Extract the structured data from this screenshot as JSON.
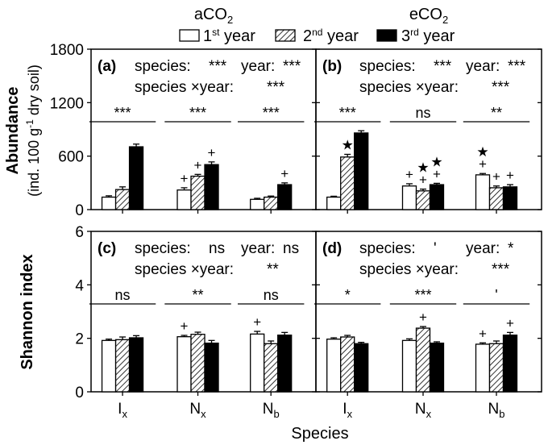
{
  "figure": {
    "header_left": {
      "base": "aCO",
      "sub": "2"
    },
    "header_right": {
      "base": "eCO",
      "sub": "2"
    },
    "xlabel": "Species",
    "ylabel_top": "Abundance",
    "ylabel_top_units": {
      "a": "(ind. 100 g",
      "sup": "-1",
      "b": " dry soil)"
    },
    "ylabel_bottom": "Shannon index",
    "legend": [
      {
        "base": "1",
        "sup": "st",
        "rest": " year"
      },
      {
        "base": "2",
        "sup": "nd",
        "rest": " year"
      },
      {
        "base": "3",
        "sup": "rd",
        "rest": " year"
      }
    ],
    "x_categories": [
      {
        "base": "I",
        "sub": "x"
      },
      {
        "base": "N",
        "sub": "x"
      },
      {
        "base": "N",
        "sub": "b"
      }
    ],
    "colors": {
      "year1": "#ffffff",
      "year2": "hatch",
      "year3": "#000000",
      "ink": "#000000"
    }
  },
  "chart_data": [
    {
      "type": "bar",
      "panel": "(a)",
      "condition": "aCO2",
      "categories": [
        "Ix",
        "Nx",
        "Nb"
      ],
      "series": [
        {
          "name": "1st year",
          "values": [
            140,
            220,
            115
          ],
          "errors": [
            15,
            25,
            12
          ]
        },
        {
          "name": "2nd year",
          "values": [
            225,
            375,
            140
          ],
          "errors": [
            30,
            20,
            12
          ]
        },
        {
          "name": "3rd year",
          "values": [
            705,
            505,
            280
          ],
          "errors": [
            30,
            30,
            20
          ]
        }
      ],
      "ylim": [
        0,
        1800
      ],
      "yticks": [
        "0",
        "600",
        "1200",
        "1800"
      ],
      "stats": [
        "species:",
        "***",
        "year:",
        "***",
        "species ×year:",
        "***"
      ],
      "group_sig": [
        "***",
        "***",
        "***"
      ],
      "marks": [
        [
          "",
          "",
          ""
        ],
        [
          "+",
          "+",
          "+"
        ],
        [
          "",
          "",
          "+"
        ]
      ]
    },
    {
      "type": "bar",
      "panel": "(b)",
      "condition": "eCO2",
      "categories": [
        "Ix",
        "Nx",
        "Nb"
      ],
      "series": [
        {
          "name": "1st year",
          "values": [
            140,
            265,
            390
          ],
          "errors": [
            10,
            25,
            15
          ]
        },
        {
          "name": "2nd year",
          "values": [
            590,
            210,
            245
          ],
          "errors": [
            30,
            20,
            20
          ]
        },
        {
          "name": "3rd year",
          "values": [
            860,
            280,
            255
          ],
          "errors": [
            25,
            15,
            25
          ]
        }
      ],
      "ylim": [
        0,
        1800
      ],
      "yticks": [
        "0",
        "600",
        "1200",
        "1800"
      ],
      "stats": [
        "species:",
        "***",
        "year:",
        "***",
        "species ×year:",
        "***"
      ],
      "group_sig": [
        "***",
        "ns",
        "**"
      ],
      "marks": [
        [
          "",
          "★",
          ""
        ],
        [
          "+",
          "★\n+",
          "★\n+"
        ],
        [
          "★\n+",
          "+",
          "+"
        ]
      ]
    },
    {
      "type": "bar",
      "panel": "(c)",
      "condition": "aCO2",
      "categories": [
        "Ix",
        "Nx",
        "Nb"
      ],
      "series": [
        {
          "name": "1st year",
          "values": [
            1.92,
            2.06,
            2.16
          ],
          "errors": [
            0.05,
            0.05,
            0.1
          ]
        },
        {
          "name": "2nd year",
          "values": [
            1.95,
            2.15,
            1.8
          ],
          "errors": [
            0.1,
            0.08,
            0.1
          ]
        },
        {
          "name": "3rd year",
          "values": [
            2.02,
            1.82,
            2.12
          ],
          "errors": [
            0.08,
            0.1,
            0.1
          ]
        }
      ],
      "ylim": [
        0,
        6
      ],
      "yticks": [
        "0",
        "2",
        "4",
        "6"
      ],
      "stats": [
        "species:",
        "ns",
        "year:",
        "ns",
        "species ×year:",
        "**"
      ],
      "group_sig": [
        "ns",
        "**",
        "ns"
      ],
      "marks": [
        [
          "",
          "",
          ""
        ],
        [
          "+",
          "",
          ""
        ],
        [
          "+",
          "",
          ""
        ]
      ]
    },
    {
      "type": "bar",
      "panel": "(d)",
      "condition": "eCO2",
      "categories": [
        "Ix",
        "Nx",
        "Nb"
      ],
      "series": [
        {
          "name": "1st year",
          "values": [
            1.97,
            1.92,
            1.78
          ],
          "errors": [
            0.05,
            0.06,
            0.05
          ]
        },
        {
          "name": "2nd year",
          "values": [
            2.05,
            2.38,
            1.8
          ],
          "errors": [
            0.06,
            0.06,
            0.1
          ]
        },
        {
          "name": "3rd year",
          "values": [
            1.8,
            1.82,
            2.12
          ],
          "errors": [
            0.05,
            0.05,
            0.1
          ]
        }
      ],
      "ylim": [
        0,
        6
      ],
      "yticks": [
        "0",
        "2",
        "4",
        "6"
      ],
      "stats": [
        "species:",
        "'",
        "year:",
        "*",
        "species ×year:",
        "***"
      ],
      "group_sig": [
        "*",
        "***",
        "'"
      ],
      "marks": [
        [
          "",
          "",
          ""
        ],
        [
          "",
          "+",
          ""
        ],
        [
          "+",
          "",
          "+"
        ]
      ]
    }
  ]
}
